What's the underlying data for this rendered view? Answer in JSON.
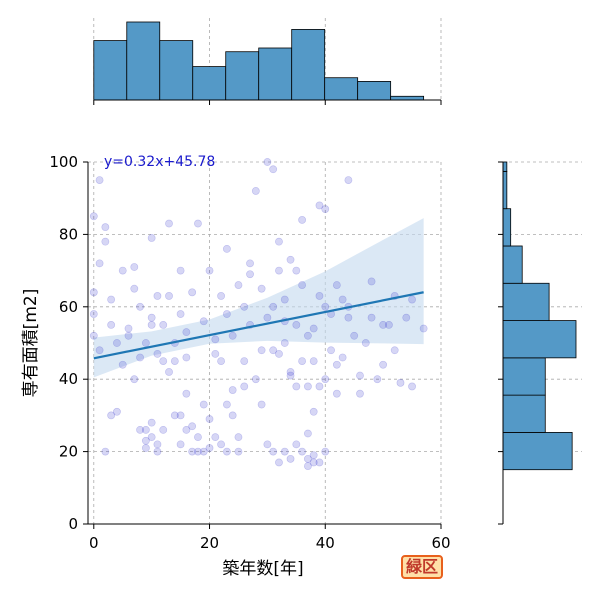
{
  "badge": {
    "label": "緑区"
  },
  "chart_data": {
    "type": "scatter",
    "xlabel": "築年数[年]",
    "ylabel": "専有面積[m2]",
    "xlim": [
      -1,
      60
    ],
    "ylim": [
      0,
      100
    ],
    "xticks": [
      0,
      20,
      40,
      60
    ],
    "yticks": [
      0,
      20,
      40,
      60,
      80,
      100
    ],
    "grid": true,
    "regression": {
      "label": "y=0.32x+45.78",
      "slope": 0.32,
      "intercept": 45.78,
      "x_range": [
        0,
        57
      ],
      "ci_upper": [
        [
          0,
          51.5
        ],
        [
          10,
          53.2
        ],
        [
          20,
          56.5
        ],
        [
          30,
          62.5
        ],
        [
          40,
          69.8
        ],
        [
          50,
          78.5
        ],
        [
          57,
          84.5
        ]
      ],
      "ci_lower": [
        [
          0,
          40.5
        ],
        [
          10,
          46.5
        ],
        [
          20,
          49.8
        ],
        [
          30,
          50.6
        ],
        [
          40,
          50.1
        ],
        [
          50,
          49.9
        ],
        [
          57,
          49.7
        ]
      ]
    },
    "points": [
      [
        1,
        95
      ],
      [
        0,
        85
      ],
      [
        1,
        72
      ],
      [
        2,
        82
      ],
      [
        2,
        78
      ],
      [
        0,
        64
      ],
      [
        0,
        58
      ],
      [
        0,
        52
      ],
      [
        1,
        48
      ],
      [
        3,
        62
      ],
      [
        3,
        55
      ],
      [
        4,
        50
      ],
      [
        2,
        20
      ],
      [
        3,
        30
      ],
      [
        4,
        31
      ],
      [
        5,
        70
      ],
      [
        6,
        54
      ],
      [
        7,
        65
      ],
      [
        7,
        71
      ],
      [
        8,
        60
      ],
      [
        8,
        26
      ],
      [
        9,
        26
      ],
      [
        9,
        23
      ],
      [
        10,
        28
      ],
      [
        10,
        24
      ],
      [
        9,
        21
      ],
      [
        11,
        22
      ],
      [
        11,
        20
      ],
      [
        12,
        26
      ],
      [
        11,
        47
      ],
      [
        12,
        45
      ],
      [
        13,
        42
      ],
      [
        12,
        55
      ],
      [
        10,
        57
      ],
      [
        10,
        79
      ],
      [
        13,
        83
      ],
      [
        13,
        63
      ],
      [
        14,
        50
      ],
      [
        14,
        45
      ],
      [
        15,
        70
      ],
      [
        15,
        58
      ],
      [
        16,
        46
      ],
      [
        16,
        36
      ],
      [
        15,
        30
      ],
      [
        17,
        27
      ],
      [
        17,
        20
      ],
      [
        18,
        83
      ],
      [
        18,
        20
      ],
      [
        19,
        20
      ],
      [
        20,
        21
      ],
      [
        20,
        70
      ],
      [
        21,
        24
      ],
      [
        22,
        45
      ],
      [
        22,
        22
      ],
      [
        23,
        33
      ],
      [
        23,
        20
      ],
      [
        24,
        30
      ],
      [
        24,
        37
      ],
      [
        25,
        24
      ],
      [
        25,
        20
      ],
      [
        26,
        60
      ],
      [
        26,
        45
      ],
      [
        27,
        55
      ],
      [
        27,
        69
      ],
      [
        28,
        92
      ],
      [
        29,
        65
      ],
      [
        30,
        100
      ],
      [
        31,
        98
      ],
      [
        32,
        70
      ],
      [
        32,
        78
      ],
      [
        32,
        47
      ],
      [
        33,
        62
      ],
      [
        33,
        50
      ],
      [
        34,
        42
      ],
      [
        35,
        70
      ],
      [
        35,
        55
      ],
      [
        36,
        45
      ],
      [
        36,
        84
      ],
      [
        37,
        25
      ],
      [
        37,
        18
      ],
      [
        38,
        17
      ],
      [
        38,
        54
      ],
      [
        38,
        45
      ],
      [
        39,
        63
      ],
      [
        39,
        88
      ],
      [
        40,
        87
      ],
      [
        40,
        60
      ],
      [
        41,
        58
      ],
      [
        41,
        48
      ],
      [
        42,
        44
      ],
      [
        42,
        36
      ],
      [
        44,
        95
      ],
      [
        43,
        62
      ],
      [
        44,
        57
      ],
      [
        45,
        52
      ],
      [
        46,
        41
      ],
      [
        46,
        36
      ],
      [
        47,
        50
      ],
      [
        48,
        67
      ],
      [
        48,
        57
      ],
      [
        49,
        40
      ],
      [
        50,
        44
      ],
      [
        51,
        55
      ],
      [
        52,
        48
      ],
      [
        53,
        39
      ],
      [
        54,
        57
      ],
      [
        55,
        62
      ],
      [
        55,
        38
      ],
      [
        57,
        54
      ],
      [
        34,
        18
      ],
      [
        35,
        22
      ],
      [
        36,
        20
      ],
      [
        37,
        16
      ],
      [
        38,
        19
      ],
      [
        39,
        17
      ],
      [
        40,
        20
      ],
      [
        33,
        20
      ],
      [
        32,
        17
      ],
      [
        31,
        20
      ],
      [
        30,
        22
      ],
      [
        26,
        38
      ],
      [
        28,
        40
      ],
      [
        29,
        33
      ],
      [
        31,
        48
      ],
      [
        34,
        41
      ],
      [
        35,
        38
      ],
      [
        37,
        38
      ],
      [
        39,
        38
      ],
      [
        40,
        40
      ],
      [
        42,
        66
      ],
      [
        43,
        46
      ],
      [
        44,
        60
      ],
      [
        50,
        55
      ],
      [
        52,
        63
      ],
      [
        16,
        53
      ],
      [
        17,
        64
      ],
      [
        19,
        56
      ],
      [
        21,
        51
      ],
      [
        23,
        58
      ],
      [
        24,
        52
      ],
      [
        5,
        44
      ],
      [
        6,
        52
      ],
      [
        7,
        40
      ],
      [
        8,
        46
      ],
      [
        9,
        50
      ],
      [
        10,
        55
      ],
      [
        11,
        63
      ],
      [
        14,
        30
      ],
      [
        15,
        22
      ],
      [
        16,
        26
      ],
      [
        18,
        24
      ],
      [
        19,
        33
      ],
      [
        20,
        29
      ],
      [
        21,
        47
      ],
      [
        22,
        63
      ],
      [
        23,
        76
      ],
      [
        25,
        66
      ],
      [
        27,
        72
      ],
      [
        29,
        48
      ],
      [
        30,
        57
      ],
      [
        31,
        60
      ],
      [
        33,
        56
      ],
      [
        34,
        73
      ],
      [
        36,
        66
      ],
      [
        37,
        52
      ],
      [
        38,
        31
      ]
    ],
    "top_histogram": {
      "bin_edges": [
        0,
        5.7,
        11.4,
        17.1,
        22.8,
        28.5,
        34.2,
        39.9,
        45.6,
        51.3,
        57
      ],
      "counts": [
        16,
        21,
        16,
        9,
        13,
        14,
        19,
        6,
        5,
        1
      ]
    },
    "right_histogram": {
      "bin_edges": [
        15,
        25.3,
        35.6,
        45.9,
        56.2,
        66.5,
        76.8,
        87.1,
        97.4,
        100
      ],
      "counts": [
        18,
        11,
        11,
        19,
        12,
        5,
        2,
        1,
        1
      ]
    }
  }
}
